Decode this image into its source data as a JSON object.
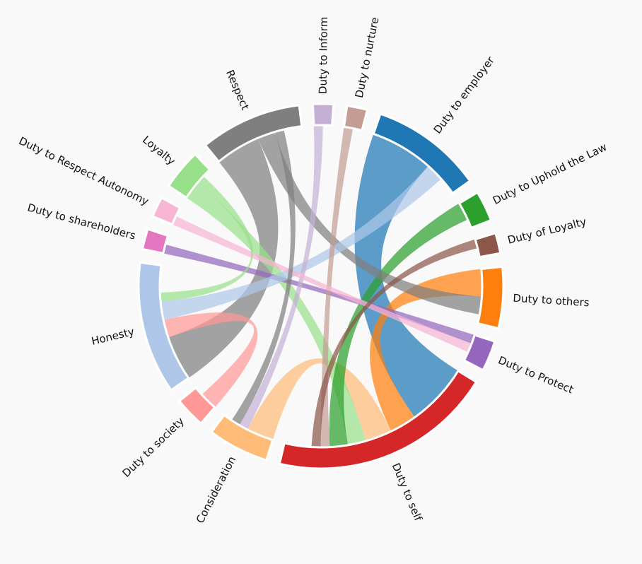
{
  "chart_data": {
    "type": "chord",
    "title": "",
    "groups": [
      {
        "name": "Duty to Inform",
        "color": "#c5b0d5",
        "value": 2
      },
      {
        "name": "Duty to nurture",
        "color": "#c49c94",
        "value": 2
      },
      {
        "name": "Duty to employer",
        "color": "#1f77b4",
        "value": 11
      },
      {
        "name": "Duty to Uphold the Law",
        "color": "#2ca02c",
        "value": 3
      },
      {
        "name": "Duty of Loyalty",
        "color": "#8c564b",
        "value": 2
      },
      {
        "name": "Duty to others",
        "color": "#ff7f0e",
        "value": 6
      },
      {
        "name": "Duty to Protect",
        "color": "#9467bd",
        "value": 3
      },
      {
        "name": "Duty to self",
        "color": "#d62728",
        "value": 22
      },
      {
        "name": "Consideration",
        "color": "#ffbb78",
        "value": 6
      },
      {
        "name": "Duty to society",
        "color": "#ff9896",
        "value": 3
      },
      {
        "name": "Honesty",
        "color": "#aec7e8",
        "value": 13
      },
      {
        "name": "Duty to shareholders",
        "color": "#e377c2",
        "value": 2
      },
      {
        "name": "Duty to Respect Autonomy",
        "color": "#f7b6d2",
        "value": 2
      },
      {
        "name": "Loyalty",
        "color": "#98df8a",
        "value": 4
      },
      {
        "name": "Respect",
        "color": "#7f7f7f",
        "value": 10
      }
    ],
    "links": [
      {
        "source": "Duty to employer",
        "target": "Duty to self",
        "value": 7
      },
      {
        "source": "Respect",
        "target": "Honesty",
        "value": 5
      },
      {
        "source": "Duty to others",
        "target": "Duty to self",
        "value": 3
      },
      {
        "source": "Duty to society",
        "target": "Honesty",
        "value": 2
      },
      {
        "source": "Consideration",
        "target": "Duty to self",
        "value": 3
      },
      {
        "source": "Loyalty",
        "target": "Duty to self",
        "value": 2
      },
      {
        "source": "Duty to Uphold the Law",
        "target": "Duty to self",
        "value": 2
      },
      {
        "source": "Duty to Protect",
        "target": "Duty to shareholders",
        "value": 1
      },
      {
        "source": "Respect",
        "target": "Duty to others",
        "value": 2
      },
      {
        "source": "Honesty",
        "target": "Duty to employer",
        "value": 2
      },
      {
        "source": "Duty to Inform",
        "target": "Consideration",
        "value": 1
      },
      {
        "source": "Duty to nurture",
        "target": "Duty to self",
        "value": 1
      },
      {
        "source": "Duty to Respect Autonomy",
        "target": "Duty to Protect",
        "value": 1
      },
      {
        "source": "Duty of Loyalty",
        "target": "Duty to self",
        "value": 1
      },
      {
        "source": "Respect",
        "target": "Consideration",
        "value": 1
      },
      {
        "source": "Loyalty",
        "target": "Honesty",
        "value": 1
      }
    ]
  }
}
